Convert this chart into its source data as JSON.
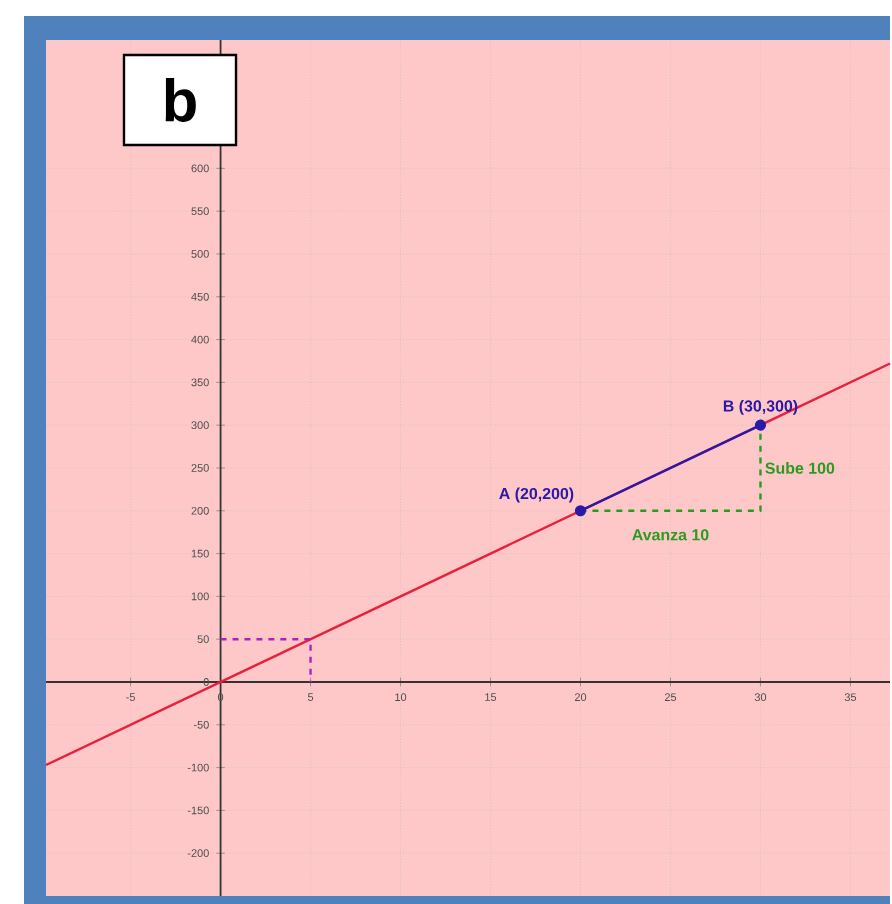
{
  "chart_data": {
    "type": "line",
    "xlim": [
      -9.7,
      37.2
    ],
    "ylim": [
      -250,
      750
    ],
    "xticks": [
      -5,
      0,
      5,
      10,
      15,
      20,
      25,
      30,
      35
    ],
    "yticks": [
      -200,
      -150,
      -100,
      -50,
      0,
      50,
      100,
      150,
      200,
      250,
      300,
      350,
      400,
      450,
      500,
      550,
      600
    ],
    "grid": true,
    "series": [
      {
        "color": "#e8203c",
        "x": [
          -9.7,
          37.2
        ],
        "values": [
          -97,
          372
        ],
        "line_style": "solid",
        "marker": "none"
      },
      {
        "color": "#2a1aa8",
        "x": [
          20,
          30
        ],
        "values": [
          200,
          300
        ],
        "line_style": "solid",
        "marker": "circle"
      },
      {
        "color": "#2a9a20",
        "x": [
          20,
          30,
          30
        ],
        "values": [
          200,
          200,
          300
        ],
        "line_style": "dashed",
        "marker": "none"
      },
      {
        "color": "#b020c0",
        "x": [
          0,
          5,
          5
        ],
        "values": [
          50,
          50,
          0
        ],
        "line_style": "dashed",
        "marker": "none"
      }
    ],
    "annotations": [
      "b",
      {
        "text": "A (20,200)",
        "x": 20,
        "y": 200
      },
      {
        "text": "B (30,300)",
        "x": 30,
        "y": 300
      },
      {
        "text": "Sube 100",
        "x": 30,
        "y": 250
      },
      {
        "text": "Avanza 10",
        "x": 25,
        "y": 200
      }
    ]
  }
}
